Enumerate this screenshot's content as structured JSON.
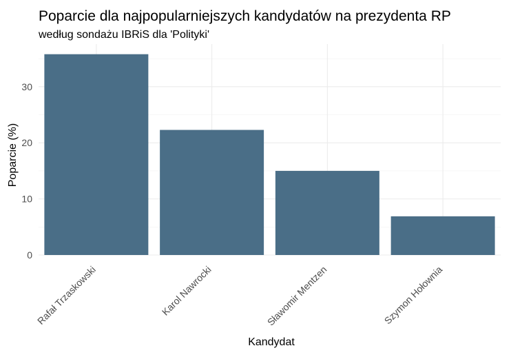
{
  "chart_data": {
    "type": "bar",
    "title": "Poparcie dla najpopularniejszych kandydatów na prezydenta RP",
    "subtitle": "według sondażu IBRiS dla 'Polityki'",
    "xlabel": "Kandydat",
    "ylabel": "Poparcie (%)",
    "categories": [
      "Rafał Trzaskowski",
      "Karol Nawrocki",
      "Sławomir Mentzen",
      "Szymon Hołownia"
    ],
    "values": [
      35.8,
      22.3,
      15.0,
      6.9
    ],
    "ylim": [
      0,
      37.6
    ],
    "yticks": [
      0,
      10,
      20,
      30
    ],
    "bar_color": "#4a6e87",
    "grid": true,
    "legend": "none"
  }
}
